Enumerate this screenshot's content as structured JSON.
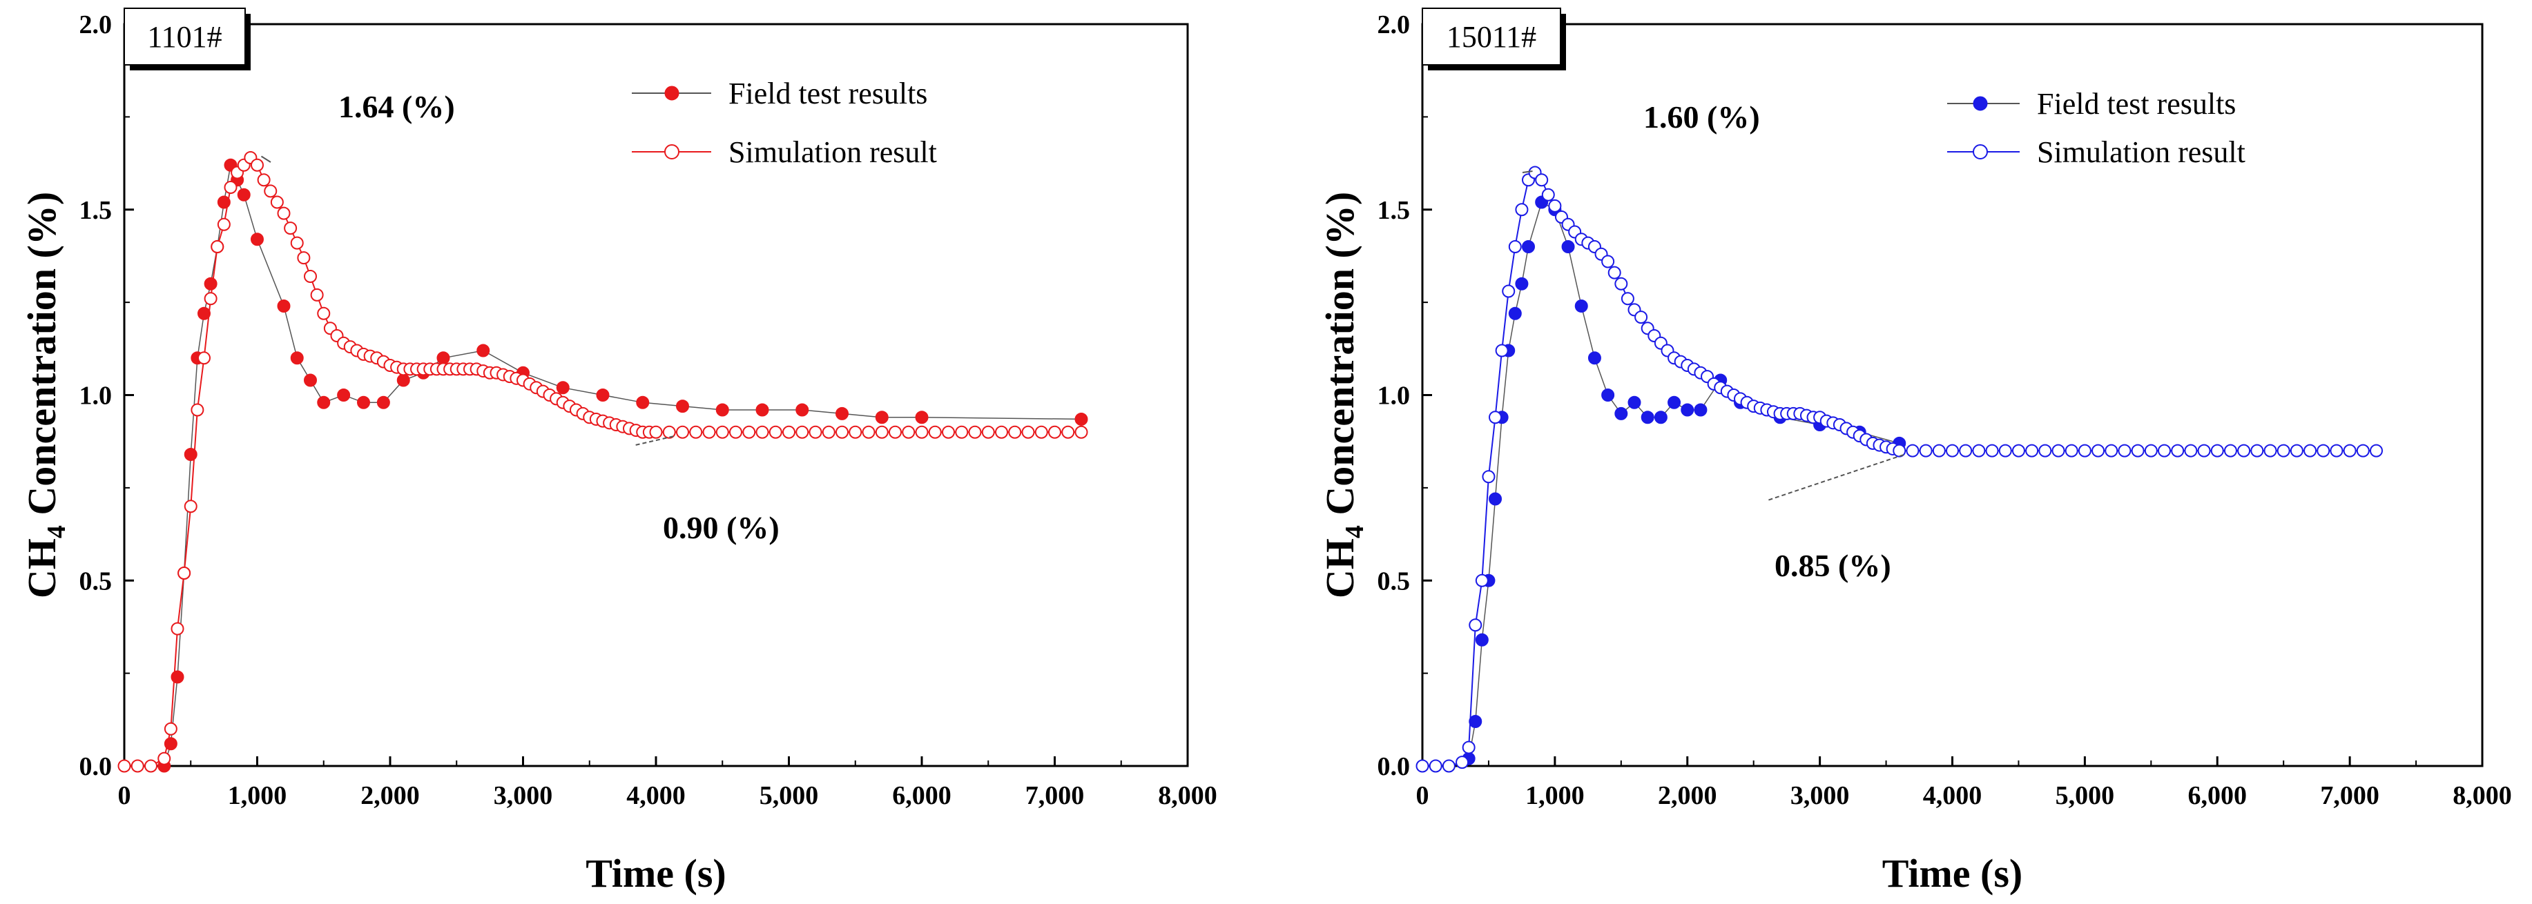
{
  "chart_data": [
    {
      "type": "line",
      "tag": "1101#",
      "xlabel": "Time (s)",
      "ylabel_main": "CH",
      "ylabel_sub": "4",
      "ylabel_rest": " Concentration (%)",
      "xlim": [
        0,
        8000
      ],
      "ylim": [
        0,
        2.0
      ],
      "xticks": [
        0,
        1000,
        2000,
        3000,
        4000,
        5000,
        6000,
        7000,
        8000
      ],
      "xtick_labels": [
        "0",
        "1,000",
        "2,000",
        "3,000",
        "4,000",
        "5,000",
        "6,000",
        "7,000",
        "8,000"
      ],
      "yticks": [
        0,
        0.5,
        1.0,
        1.5,
        2.0
      ],
      "ytick_labels": [
        "0.0",
        "0.5",
        "1.0",
        "1.5",
        "2.0"
      ],
      "color": "#e8191c",
      "legend": [
        "Field test results",
        "Simulation result"
      ],
      "annotations": [
        {
          "text": "1.64 (%)",
          "x": 1000,
          "y": 1.64
        },
        {
          "text": "0.90 (%)",
          "x": 4100,
          "y": 0.9
        }
      ],
      "series": [
        {
          "name": "Field test results",
          "marker": "filled",
          "x": [
            300,
            350,
            400,
            450,
            500,
            550,
            600,
            650,
            700,
            750,
            800,
            850,
            900,
            1000,
            1200,
            1300,
            1400,
            1500,
            1650,
            1800,
            1950,
            2100,
            2250,
            2400,
            2700,
            3000,
            3300,
            3600,
            3900,
            4200,
            4500,
            4800,
            5100,
            5400,
            5700,
            6000,
            7200
          ],
          "y": [
            0.0,
            0.06,
            0.24,
            0.52,
            0.84,
            1.1,
            1.22,
            1.3,
            1.4,
            1.52,
            1.62,
            1.58,
            1.54,
            1.42,
            1.24,
            1.1,
            1.04,
            0.98,
            1.0,
            0.98,
            0.98,
            1.04,
            1.06,
            1.1,
            1.12,
            1.06,
            1.02,
            1.0,
            0.98,
            0.97,
            0.96,
            0.96,
            0.96,
            0.95,
            0.94,
            0.94,
            0.935
          ]
        },
        {
          "name": "Simulation result",
          "marker": "open",
          "x": [
            0,
            100,
            200,
            300,
            350,
            400,
            450,
            500,
            550,
            600,
            650,
            700,
            750,
            800,
            850,
            900,
            950,
            1000,
            1050,
            1100,
            1150,
            1200,
            1250,
            1300,
            1350,
            1400,
            1450,
            1500,
            1550,
            1600,
            1650,
            1700,
            1750,
            1800,
            1850,
            1900,
            1950,
            2000,
            2050,
            2100,
            2150,
            2200,
            2250,
            2300,
            2350,
            2400,
            2450,
            2500,
            2550,
            2600,
            2650,
            2700,
            2750,
            2800,
            2850,
            2900,
            2950,
            3000,
            3050,
            3100,
            3150,
            3200,
            3250,
            3300,
            3350,
            3400,
            3450,
            3500,
            3550,
            3600,
            3650,
            3700,
            3750,
            3800,
            3850,
            3900,
            3950,
            4000,
            4100,
            4200,
            4300,
            4400,
            4500,
            4600,
            4700,
            4800,
            4900,
            5000,
            5100,
            5200,
            5300,
            5400,
            5500,
            5600,
            5700,
            5800,
            5900,
            6000,
            6100,
            6200,
            6300,
            6400,
            6500,
            6600,
            6700,
            6800,
            6900,
            7000,
            7100,
            7200
          ],
          "y": [
            0.0,
            0.0,
            0.0,
            0.02,
            0.1,
            0.37,
            0.52,
            0.7,
            0.96,
            1.1,
            1.26,
            1.4,
            1.46,
            1.56,
            1.6,
            1.62,
            1.64,
            1.62,
            1.58,
            1.55,
            1.52,
            1.49,
            1.45,
            1.41,
            1.37,
            1.32,
            1.27,
            1.22,
            1.18,
            1.16,
            1.14,
            1.13,
            1.12,
            1.11,
            1.105,
            1.1,
            1.09,
            1.08,
            1.075,
            1.07,
            1.07,
            1.07,
            1.07,
            1.07,
            1.07,
            1.07,
            1.07,
            1.07,
            1.07,
            1.07,
            1.07,
            1.065,
            1.06,
            1.06,
            1.055,
            1.05,
            1.045,
            1.04,
            1.03,
            1.02,
            1.01,
            1.0,
            0.99,
            0.98,
            0.97,
            0.96,
            0.95,
            0.94,
            0.935,
            0.93,
            0.925,
            0.92,
            0.915,
            0.91,
            0.905,
            0.9,
            0.9,
            0.9,
            0.9,
            0.9,
            0.9,
            0.9,
            0.9,
            0.9,
            0.9,
            0.9,
            0.9,
            0.9,
            0.9,
            0.9,
            0.9,
            0.9,
            0.9,
            0.9,
            0.9,
            0.9,
            0.9,
            0.9,
            0.9,
            0.9,
            0.9,
            0.9,
            0.9,
            0.9,
            0.9,
            0.9,
            0.9,
            0.9,
            0.9,
            0.9
          ]
        }
      ]
    },
    {
      "type": "line",
      "tag": "15011#",
      "xlabel": "Time (s)",
      "ylabel_main": "CH",
      "ylabel_sub": "4",
      "ylabel_rest": " Concentration (%)",
      "xlim": [
        0,
        8000
      ],
      "ylim": [
        0,
        2.0
      ],
      "xticks": [
        0,
        1000,
        2000,
        3000,
        4000,
        5000,
        6000,
        7000,
        8000
      ],
      "xtick_labels": [
        "0",
        "1,000",
        "2,000",
        "3,000",
        "4,000",
        "5,000",
        "6,000",
        "7,000",
        "8,000"
      ],
      "yticks": [
        0,
        0.5,
        1.0,
        1.5,
        2.0
      ],
      "ytick_labels": [
        "0.0",
        "0.5",
        "1.0",
        "1.5",
        "2.0"
      ],
      "color": "#1a1ae6",
      "legend": [
        "Field test results",
        "Simulation result"
      ],
      "annotations": [
        {
          "text": "1.60 (%)",
          "x": 800,
          "y": 1.6
        },
        {
          "text": "0.85 (%)",
          "x": 3600,
          "y": 0.85
        }
      ],
      "series": [
        {
          "name": "Field test results",
          "marker": "filled",
          "x": [
            350,
            400,
            450,
            500,
            550,
            600,
            650,
            700,
            750,
            800,
            900,
            1000,
            1100,
            1200,
            1300,
            1400,
            1500,
            1600,
            1700,
            1800,
            1900,
            2000,
            2100,
            2250,
            2400,
            2700,
            3000,
            3300,
            3600
          ],
          "y": [
            0.02,
            0.12,
            0.34,
            0.5,
            0.72,
            0.94,
            1.12,
            1.22,
            1.3,
            1.4,
            1.52,
            1.5,
            1.4,
            1.24,
            1.1,
            1.0,
            0.95,
            0.98,
            0.94,
            0.94,
            0.98,
            0.96,
            0.96,
            1.04,
            0.98,
            0.94,
            0.92,
            0.9,
            0.87
          ]
        },
        {
          "name": "Simulation result",
          "marker": "open",
          "x": [
            0,
            100,
            200,
            300,
            350,
            400,
            450,
            500,
            550,
            600,
            650,
            700,
            750,
            800,
            850,
            900,
            950,
            1000,
            1050,
            1100,
            1150,
            1200,
            1250,
            1300,
            1350,
            1400,
            1450,
            1500,
            1550,
            1600,
            1650,
            1700,
            1750,
            1800,
            1850,
            1900,
            1950,
            2000,
            2050,
            2100,
            2150,
            2200,
            2250,
            2300,
            2350,
            2400,
            2450,
            2500,
            2550,
            2600,
            2650,
            2700,
            2750,
            2800,
            2850,
            2900,
            2950,
            3000,
            3050,
            3100,
            3150,
            3200,
            3250,
            3300,
            3350,
            3400,
            3450,
            3500,
            3550,
            3600,
            3700,
            3800,
            3900,
            4000,
            4100,
            4200,
            4300,
            4400,
            4500,
            4600,
            4700,
            4800,
            4900,
            5000,
            5100,
            5200,
            5300,
            5400,
            5500,
            5600,
            5700,
            5800,
            5900,
            6000,
            6100,
            6200,
            6300,
            6400,
            6500,
            6600,
            6700,
            6800,
            6900,
            7000,
            7100,
            7200
          ],
          "y": [
            0.0,
            0.0,
            0.0,
            0.01,
            0.05,
            0.38,
            0.5,
            0.78,
            0.94,
            1.12,
            1.28,
            1.4,
            1.5,
            1.58,
            1.6,
            1.58,
            1.54,
            1.51,
            1.48,
            1.46,
            1.44,
            1.42,
            1.41,
            1.4,
            1.38,
            1.36,
            1.33,
            1.3,
            1.26,
            1.23,
            1.21,
            1.18,
            1.16,
            1.14,
            1.12,
            1.1,
            1.09,
            1.08,
            1.07,
            1.06,
            1.05,
            1.03,
            1.02,
            1.01,
            1.0,
            0.99,
            0.98,
            0.97,
            0.965,
            0.96,
            0.955,
            0.95,
            0.95,
            0.95,
            0.95,
            0.945,
            0.94,
            0.94,
            0.93,
            0.925,
            0.92,
            0.91,
            0.9,
            0.89,
            0.88,
            0.87,
            0.865,
            0.86,
            0.855,
            0.85,
            0.85,
            0.85,
            0.85,
            0.85,
            0.85,
            0.85,
            0.85,
            0.85,
            0.85,
            0.85,
            0.85,
            0.85,
            0.85,
            0.85,
            0.85,
            0.85,
            0.85,
            0.85,
            0.85,
            0.85,
            0.85,
            0.85,
            0.85,
            0.85,
            0.85,
            0.85,
            0.85,
            0.85,
            0.85,
            0.85,
            0.85,
            0.85,
            0.85,
            0.85,
            0.85,
            0.85
          ]
        }
      ]
    }
  ]
}
